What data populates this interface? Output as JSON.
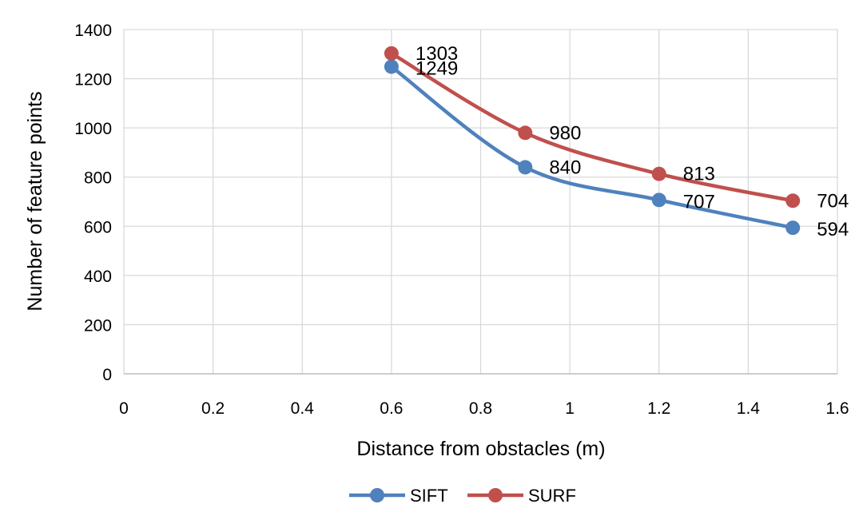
{
  "chart_data": {
    "type": "line",
    "title": "",
    "xlabel": "Distance from obstacles (m)",
    "ylabel": "Number of feature points",
    "xlim": [
      0,
      1.6
    ],
    "ylim": [
      0,
      1400
    ],
    "x_ticks": [
      0,
      0.2,
      0.4,
      0.6,
      0.8,
      1,
      1.2,
      1.4,
      1.6
    ],
    "x_tick_labels": [
      "0",
      "0.2",
      "0.4",
      "0.6",
      "0.8",
      "1",
      "1.2",
      "1.4",
      "1.6"
    ],
    "y_ticks": [
      0,
      200,
      400,
      600,
      800,
      1000,
      1200,
      1400
    ],
    "y_tick_labels": [
      "0",
      "200",
      "400",
      "600",
      "800",
      "1000",
      "1200",
      "1400"
    ],
    "grid": true,
    "smooth": true,
    "legend_position": "bottom",
    "series": [
      {
        "name": "SIFT",
        "color": "#4f81bd",
        "x": [
          0.6,
          0.9,
          1.2,
          1.5
        ],
        "y": [
          1249,
          840,
          707,
          594
        ],
        "labels": [
          "1249",
          "840",
          "707",
          "594"
        ]
      },
      {
        "name": "SURF",
        "color": "#c0504d",
        "x": [
          0.6,
          0.9,
          1.2,
          1.5
        ],
        "y": [
          1303,
          980,
          813,
          704
        ],
        "labels": [
          "1303",
          "980",
          "813",
          "704"
        ]
      }
    ]
  }
}
